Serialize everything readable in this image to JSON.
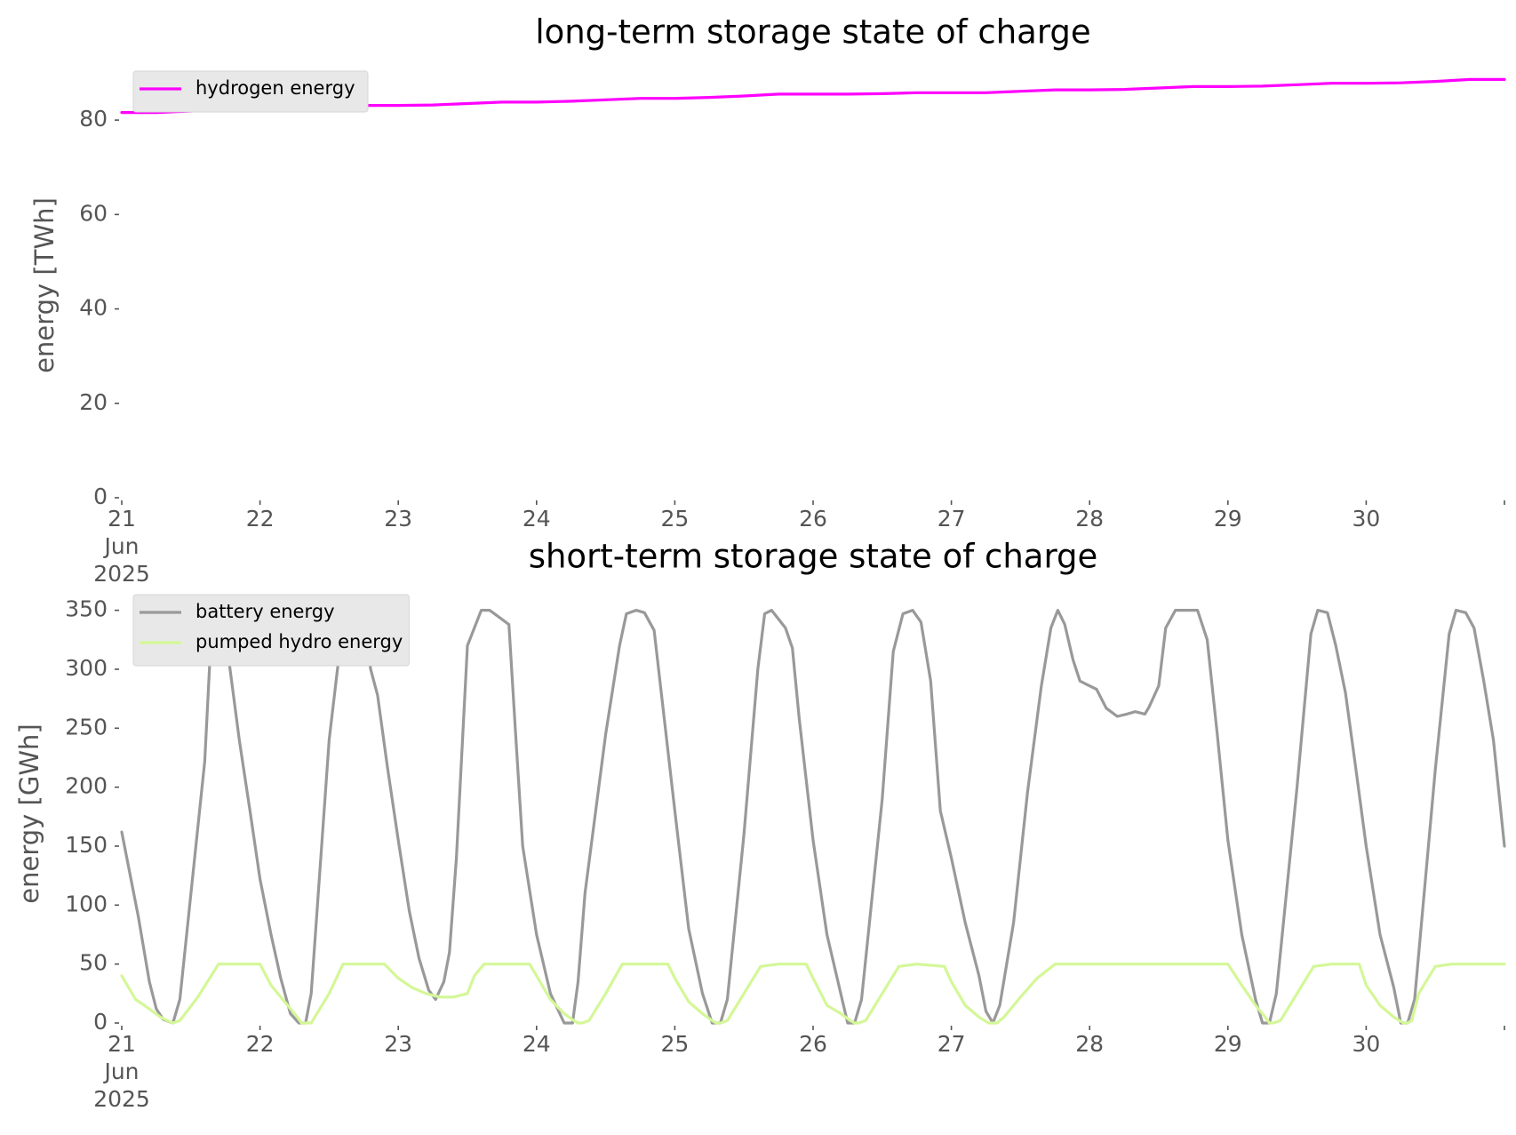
{
  "chart_data": [
    {
      "type": "line",
      "title": "long-term storage state of charge",
      "xlabel": "",
      "ylabel": "energy [TWh]",
      "xlim": [
        0,
        10
      ],
      "ylim": [
        0,
        90
      ],
      "grid": false,
      "legend_position": "top-left",
      "x_ticks": [
        0,
        1,
        2,
        3,
        4,
        5,
        6,
        7,
        8,
        9,
        10
      ],
      "x_tick_labels": [
        "21\nJun\n2025",
        "22",
        "23",
        "24",
        "25",
        "26",
        "27",
        "28",
        "29",
        "30",
        ""
      ],
      "y_ticks": [
        0,
        20,
        40,
        60,
        80
      ],
      "y_tick_labels": [
        "0",
        "20",
        "40",
        "60",
        "80"
      ],
      "series": [
        {
          "name": "hydrogen energy",
          "color": "#ff00ff",
          "x": [
            0,
            0.25,
            0.5,
            0.75,
            1,
            1.25,
            1.5,
            1.75,
            2,
            2.25,
            2.5,
            2.75,
            3,
            3.25,
            3.5,
            3.75,
            4,
            4.25,
            4.5,
            4.75,
            5,
            5.25,
            5.5,
            5.75,
            6,
            6.25,
            6.5,
            6.75,
            7,
            7.25,
            7.5,
            7.75,
            8,
            8.25,
            8.5,
            8.75,
            9,
            9.25,
            9.5,
            9.75,
            10
          ],
          "y": [
            81.6,
            81.6,
            81.9,
            82.3,
            82.4,
            82.5,
            82.9,
            83.1,
            83.1,
            83.2,
            83.5,
            83.8,
            83.8,
            84.0,
            84.3,
            84.6,
            84.6,
            84.8,
            85.1,
            85.5,
            85.5,
            85.5,
            85.6,
            85.8,
            85.8,
            85.8,
            86.1,
            86.4,
            86.4,
            86.5,
            86.8,
            87.1,
            87.1,
            87.2,
            87.5,
            87.8,
            87.8,
            87.9,
            88.2,
            88.6,
            88.6
          ]
        }
      ]
    },
    {
      "type": "line",
      "title": "short-term storage state of charge",
      "xlabel": "",
      "ylabel": "energy [GWh]",
      "xlim": [
        0,
        10
      ],
      "ylim": [
        0,
        355
      ],
      "grid": false,
      "legend_position": "top-left",
      "x_ticks": [
        0,
        1,
        2,
        3,
        4,
        5,
        6,
        7,
        8,
        9,
        10
      ],
      "x_tick_labels": [
        "21\nJun\n2025",
        "22",
        "23",
        "24",
        "25",
        "26",
        "27",
        "28",
        "29",
        "30",
        ""
      ],
      "y_ticks": [
        0,
        50,
        100,
        150,
        200,
        250,
        300,
        350
      ],
      "y_tick_labels": [
        "0",
        "50",
        "100",
        "150",
        "200",
        "250",
        "300",
        "350"
      ],
      "series": [
        {
          "name": "battery energy",
          "color": "#999999",
          "x": [
            0,
            0.12,
            0.2,
            0.25,
            0.3,
            0.37,
            0.42,
            0.6,
            0.65,
            0.7,
            0.75,
            0.85,
            0.93,
            1.0,
            1.08,
            1.15,
            1.22,
            1.28,
            1.33,
            1.37,
            1.5,
            1.6,
            1.65,
            1.7,
            1.75,
            1.8,
            1.85,
            1.92,
            2.0,
            2.08,
            2.15,
            2.22,
            2.27,
            2.33,
            2.37,
            2.42,
            2.5,
            2.6,
            2.66,
            2.72,
            2.8,
            2.85,
            2.9,
            3.0,
            3.1,
            3.2,
            3.26,
            3.3,
            3.35,
            3.5,
            3.6,
            3.65,
            3.72,
            3.78,
            3.85,
            4.0,
            4.1,
            4.2,
            4.27,
            4.33,
            4.38,
            4.5,
            4.6,
            4.65,
            4.7,
            4.8,
            4.85,
            4.9,
            5.0,
            5.1,
            5.2,
            5.25,
            5.3,
            5.35,
            5.5,
            5.58,
            5.65,
            5.72,
            5.78,
            5.85,
            5.92,
            6.0,
            6.1,
            6.2,
            6.25,
            6.3,
            6.35,
            6.45,
            6.55,
            6.65,
            6.72,
            6.77,
            6.82,
            6.88,
            6.93,
            6.98,
            7.05,
            7.12,
            7.2,
            7.27,
            7.33,
            7.4,
            7.43,
            7.5,
            7.55,
            7.62,
            7.72,
            7.78,
            7.85,
            7.92,
            8.0,
            8.1,
            8.2,
            8.25,
            8.3,
            8.35,
            8.5,
            8.6,
            8.65,
            8.72,
            8.78,
            8.85,
            8.92,
            9.0,
            9.1,
            9.2,
            9.25,
            9.3,
            9.35,
            9.5,
            9.6,
            9.65,
            9.72,
            9.78,
            9.85,
            9.92,
            10.0
          ],
          "y": [
            162,
            90,
            35,
            12,
            3,
            0,
            20,
            222,
            336,
            350,
            330,
            240,
            178,
            122,
            75,
            38,
            8,
            0,
            0,
            25,
            240,
            340,
            350,
            350,
            345,
            300,
            278,
            218,
            155,
            95,
            55,
            28,
            20,
            35,
            60,
            140,
            320,
            350,
            350,
            345,
            338,
            242,
            150,
            75,
            25,
            0,
            0,
            35,
            110,
            245,
            320,
            347,
            350,
            348,
            333,
            180,
            80,
            25,
            0,
            0,
            20,
            160,
            300,
            347,
            350,
            335,
            318,
            258,
            155,
            75,
            25,
            0,
            0,
            20,
            190,
            315,
            347,
            350,
            340,
            290,
            180,
            140,
            85,
            40,
            10,
            0,
            15,
            85,
            195,
            285,
            335,
            350,
            338,
            308,
            290,
            287,
            283,
            267,
            260,
            262,
            264,
            262,
            268,
            286,
            335,
            350,
            350,
            350,
            325,
            248,
            155,
            75,
            20,
            0,
            0,
            25,
            200,
            330,
            350,
            348,
            320,
            280,
            220,
            150,
            75,
            30,
            0,
            0,
            20,
            215,
            330,
            350,
            348,
            335,
            290,
            240,
            150
          ],
          "x_note": "x in days after 21 Jun 2025 00:00"
        },
        {
          "name": "pumped hydro energy",
          "color": "#d4f797",
          "x": [
            0,
            0.1,
            0.2,
            0.28,
            0.33,
            0.37,
            0.42,
            0.55,
            0.7,
            0.8,
            0.95,
            1.0,
            1.08,
            1.2,
            1.27,
            1.3,
            1.33,
            1.37,
            1.5,
            1.6,
            1.75,
            1.9,
            2.0,
            2.1,
            2.2,
            2.3,
            2.4,
            2.5,
            2.55,
            2.62,
            2.7,
            2.8,
            2.95,
            3.0,
            3.1,
            3.2,
            3.27,
            3.3,
            3.33,
            3.38,
            3.5,
            3.62,
            3.75,
            3.95,
            4.0,
            4.1,
            4.2,
            4.27,
            4.3,
            4.33,
            4.38,
            4.5,
            4.62,
            4.75,
            4.95,
            5.0,
            5.1,
            5.2,
            5.27,
            5.3,
            5.33,
            5.38,
            5.5,
            5.62,
            5.75,
            5.95,
            6.0,
            6.1,
            6.2,
            6.27,
            6.3,
            6.33,
            6.38,
            6.5,
            6.62,
            6.75,
            6.95,
            7.0,
            7.5,
            8.0,
            8.1,
            8.2,
            8.27,
            8.3,
            8.33,
            8.38,
            8.5,
            8.62,
            8.75,
            8.95,
            9.0,
            9.1,
            9.2,
            9.27,
            9.3,
            9.33,
            9.38,
            9.5,
            9.62,
            9.75,
            9.95,
            10.0
          ],
          "y": [
            40,
            20,
            12,
            5,
            2,
            0,
            2,
            22,
            50,
            50,
            50,
            50,
            32,
            15,
            5,
            0,
            0,
            0,
            25,
            50,
            50,
            50,
            38,
            30,
            25,
            22,
            22,
            25,
            40,
            50,
            50,
            50,
            50,
            40,
            20,
            8,
            2,
            0,
            0,
            2,
            25,
            50,
            50,
            50,
            38,
            18,
            8,
            2,
            0,
            0,
            2,
            25,
            48,
            50,
            50,
            38,
            15,
            8,
            2,
            0,
            0,
            2,
            25,
            48,
            50,
            48,
            35,
            15,
            5,
            0,
            0,
            0,
            5,
            22,
            38,
            50,
            50,
            50,
            50,
            50,
            32,
            15,
            5,
            0,
            0,
            2,
            25,
            48,
            50,
            50,
            32,
            15,
            5,
            0,
            0,
            2,
            25,
            48,
            50,
            50,
            50,
            50
          ]
        }
      ]
    }
  ]
}
